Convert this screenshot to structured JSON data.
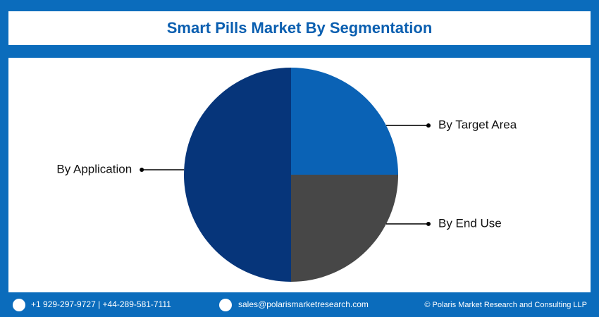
{
  "chart_data": {
    "type": "pie",
    "title": "Smart Pills Market By Segmentation",
    "categories": [
      "By Target Area",
      "By End Use",
      "By Application"
    ],
    "values": [
      25,
      25,
      50
    ],
    "colors": [
      "#0a62b5",
      "#474747",
      "#06357a"
    ]
  },
  "footer": {
    "phone": "+1 929-297-9727 | +44-289-581-7111",
    "email": "sales@polarismarketresearch.com",
    "copyright": "© Polaris Market Research and Consulting LLP"
  }
}
